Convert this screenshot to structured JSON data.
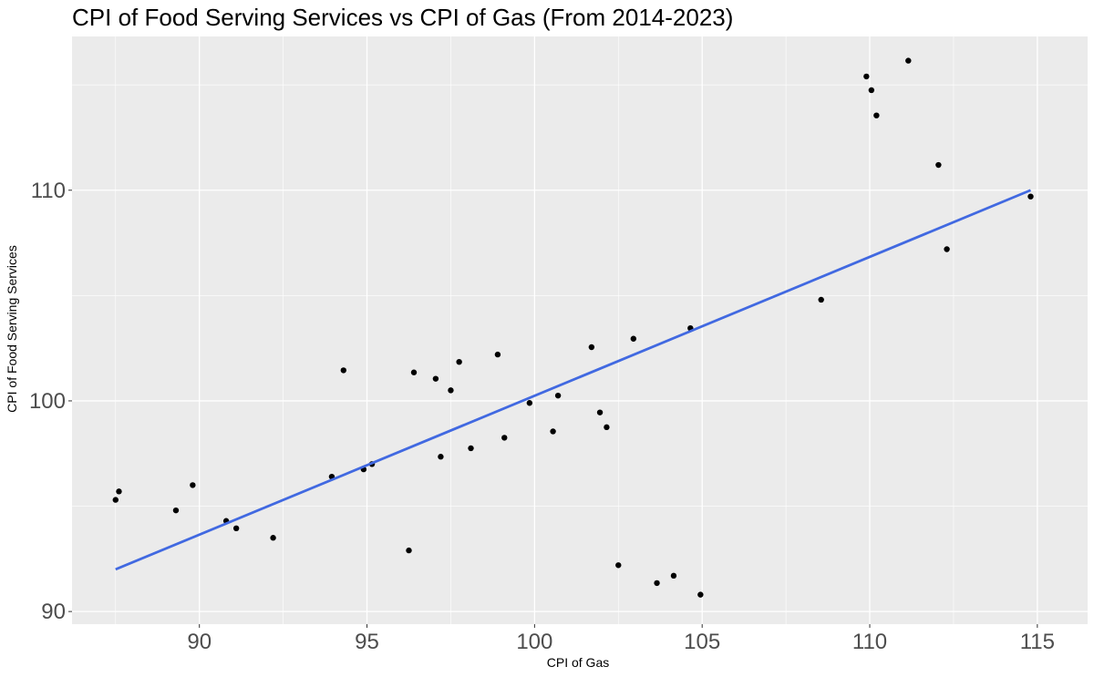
{
  "chart_data": {
    "type": "scatter",
    "title": "CPI of Food Serving Services vs CPI of Gas (From 2014-2023)",
    "xlabel": "CPI of Gas",
    "ylabel": "CPI of Food Serving Services",
    "xlim": [
      86.2,
      116.5
    ],
    "ylim": [
      89.4,
      117.3
    ],
    "xticks": [
      90,
      95,
      100,
      105,
      110,
      115
    ],
    "yticks": [
      90,
      100,
      110
    ],
    "grid": true,
    "legend": "none",
    "colors": {
      "panel": "#ebebeb",
      "grid": "#ffffff",
      "points": "#000000",
      "trend": "#4169e1"
    },
    "points": [
      {
        "x": 87.5,
        "y": 95.3
      },
      {
        "x": 87.6,
        "y": 95.7
      },
      {
        "x": 89.3,
        "y": 94.8
      },
      {
        "x": 89.8,
        "y": 96.0
      },
      {
        "x": 90.8,
        "y": 94.3
      },
      {
        "x": 91.1,
        "y": 93.95
      },
      {
        "x": 92.2,
        "y": 93.5
      },
      {
        "x": 93.95,
        "y": 96.4
      },
      {
        "x": 94.3,
        "y": 101.45
      },
      {
        "x": 94.9,
        "y": 96.75
      },
      {
        "x": 95.15,
        "y": 97.0
      },
      {
        "x": 96.25,
        "y": 92.9
      },
      {
        "x": 96.4,
        "y": 101.35
      },
      {
        "x": 97.05,
        "y": 101.05
      },
      {
        "x": 97.2,
        "y": 97.35
      },
      {
        "x": 97.5,
        "y": 100.5
      },
      {
        "x": 97.75,
        "y": 101.85
      },
      {
        "x": 98.1,
        "y": 97.75
      },
      {
        "x": 98.9,
        "y": 102.2
      },
      {
        "x": 99.1,
        "y": 98.25
      },
      {
        "x": 99.85,
        "y": 99.9
      },
      {
        "x": 100.55,
        "y": 98.55
      },
      {
        "x": 100.7,
        "y": 100.25
      },
      {
        "x": 101.7,
        "y": 102.55
      },
      {
        "x": 101.95,
        "y": 99.45
      },
      {
        "x": 102.15,
        "y": 98.75
      },
      {
        "x": 102.5,
        "y": 92.2
      },
      {
        "x": 102.95,
        "y": 102.95
      },
      {
        "x": 103.65,
        "y": 91.35
      },
      {
        "x": 104.15,
        "y": 91.7
      },
      {
        "x": 104.65,
        "y": 103.45
      },
      {
        "x": 104.95,
        "y": 90.8
      },
      {
        "x": 108.55,
        "y": 104.8
      },
      {
        "x": 109.9,
        "y": 115.4
      },
      {
        "x": 110.05,
        "y": 114.75
      },
      {
        "x": 110.2,
        "y": 113.55
      },
      {
        "x": 111.15,
        "y": 116.15
      },
      {
        "x": 112.05,
        "y": 111.2
      },
      {
        "x": 112.3,
        "y": 107.2
      },
      {
        "x": 114.8,
        "y": 109.7
      }
    ],
    "trend_line": {
      "x": [
        87.5,
        114.8
      ],
      "y": [
        92.0,
        110.0
      ]
    }
  }
}
